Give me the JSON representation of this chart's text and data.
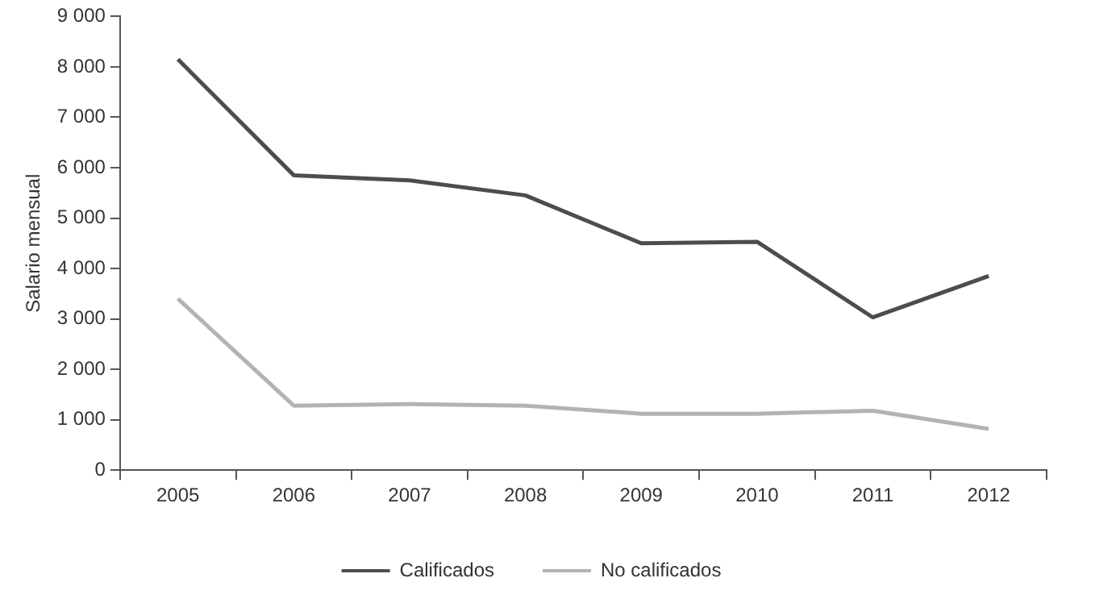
{
  "chart_data": {
    "type": "line",
    "ylabel": "Salario mensual",
    "categories": [
      "2005",
      "2006",
      "2007",
      "2008",
      "2009",
      "2010",
      "2011",
      "2012"
    ],
    "series": [
      {
        "name": "Calificados",
        "color": "#4d4d4d",
        "values": [
          8150,
          5850,
          5750,
          5450,
          4500,
          4530,
          3030,
          3850
        ]
      },
      {
        "name": "No calificados",
        "color": "#b3b3b3",
        "values": [
          3400,
          1280,
          1310,
          1280,
          1120,
          1120,
          1180,
          820
        ]
      }
    ],
    "ylim": [
      0,
      9000
    ],
    "yticks": [
      0,
      {
        "value": 1000,
        "label": "1 000"
      },
      {
        "value": 2000,
        "label": "2 000"
      },
      {
        "value": 3000,
        "label": "3 000"
      },
      {
        "value": 4000,
        "label": "4 000"
      },
      {
        "value": 5000,
        "label": "5 000"
      },
      {
        "value": 6000,
        "label": "6 000"
      },
      {
        "value": 7000,
        "label": "7 000"
      },
      {
        "value": 8000,
        "label": "8 000"
      },
      {
        "value": 9000,
        "label": "9 000"
      }
    ],
    "grid": false,
    "legend": "bottom",
    "marker": "none",
    "line_style": "solid"
  }
}
